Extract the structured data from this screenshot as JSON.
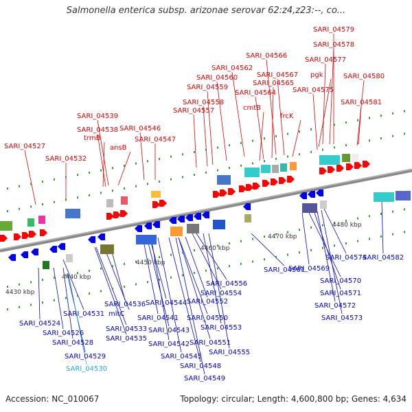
{
  "title": "Salmonella enterica subsp. arizonae serovar 62:z4,z23:--, co...",
  "footer": {
    "accession": "Accession: NC_010067",
    "topology": "Topology: circular; Length: 4,600,800 bp; Genes: 4,634"
  },
  "colors": {
    "forward_label": "#dd0000",
    "reverse_label": "#0000cc",
    "highlight_label": "#22aadd",
    "forward_gene": "#ff0000",
    "reverse_gene": "#0000ee",
    "backbone": "#888888"
  },
  "ticks": [
    "4430 kbp",
    "4440 kbp",
    "4450 kbp",
    "4460 kbp",
    "4470 kbp",
    "4480 kbp"
  ],
  "top_labels": [
    {
      "text": "SARI_04579"
    },
    {
      "text": "SARI_04578"
    },
    {
      "text": "SARI_04577"
    },
    {
      "text": "SARI_04566"
    },
    {
      "text": "SARI_04562"
    },
    {
      "text": "pgk"
    },
    {
      "text": "SARI_04580"
    },
    {
      "text": "SARI_04560"
    },
    {
      "text": "SARI_04567"
    },
    {
      "text": "SARI_04559"
    },
    {
      "text": "SARI_04565"
    },
    {
      "text": "SARI_04575"
    },
    {
      "text": "SARI_04564"
    },
    {
      "text": "SARI_04558"
    },
    {
      "text": "SARI_04581"
    },
    {
      "text": "cmtB"
    },
    {
      "text": "SARI_04557"
    },
    {
      "text": "frcK"
    },
    {
      "text": "SARI_04539"
    },
    {
      "text": "SARI_04538"
    },
    {
      "text": "SARI_04546"
    },
    {
      "text": "trmB"
    },
    {
      "text": "SARI_04547"
    },
    {
      "text": "ansB"
    },
    {
      "text": "SARI_04527"
    },
    {
      "text": "SARI_04532"
    }
  ],
  "bottom_labels": [
    {
      "text": "SARI_04556"
    },
    {
      "text": "SARI_04561"
    },
    {
      "text": "SARI_04569"
    },
    {
      "text": "SARI_04574"
    },
    {
      "text": "SARI_04582"
    },
    {
      "text": "SARI_04554"
    },
    {
      "text": "SARI_04570"
    },
    {
      "text": "SARI_04552"
    },
    {
      "text": "SARI_04571"
    },
    {
      "text": "SARI_04536"
    },
    {
      "text": "SARI_04544"
    },
    {
      "text": "SARI_04572"
    },
    {
      "text": "SARI_04531"
    },
    {
      "text": "mltC"
    },
    {
      "text": "SARI_04550"
    },
    {
      "text": "SARI_04541"
    },
    {
      "text": "SARI_04573"
    },
    {
      "text": "SARI_04524"
    },
    {
      "text": "SARI_04533"
    },
    {
      "text": "SARI_04553"
    },
    {
      "text": "SARI_04543"
    },
    {
      "text": "SARI_04526"
    },
    {
      "text": "SARI_04535"
    },
    {
      "text": "SARI_04551"
    },
    {
      "text": "SARI_04528"
    },
    {
      "text": "SARI_04542"
    },
    {
      "text": "SARI_04555"
    },
    {
      "text": "SARI_04529"
    },
    {
      "text": "SARI_04545"
    },
    {
      "text": "SARI_04548"
    },
    {
      "text": "SARI_04530"
    },
    {
      "text": "SARI_04549"
    }
  ]
}
